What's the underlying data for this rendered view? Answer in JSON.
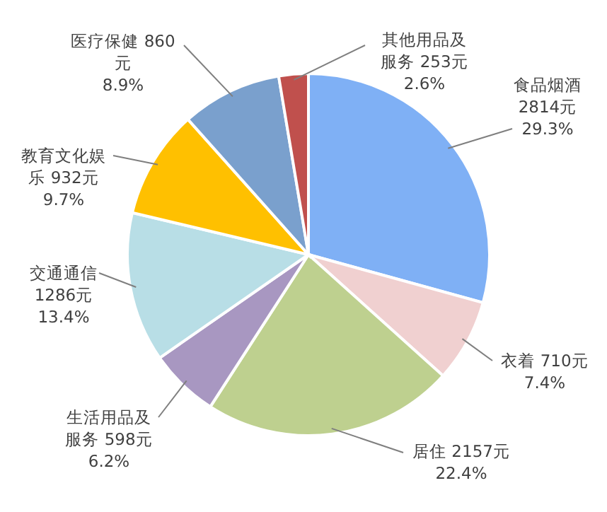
{
  "chart_data": {
    "type": "pie",
    "categories": [
      "食品烟酒",
      "衣着",
      "居住",
      "生活用品及服务",
      "交通通信",
      "教育文化娱乐",
      "医疗保健",
      "其他用品及服务"
    ],
    "values": [
      2814,
      710,
      2157,
      598,
      1286,
      932,
      860,
      253
    ],
    "colors": [
      "#7fb0f5",
      "#f0d0d0",
      "#bed08f",
      "#a897c1",
      "#b8dee6",
      "#ffc000",
      "#7aa0cd",
      "#c0504d"
    ],
    "value_labels": [
      "2814元\n29.3%",
      "710元\n7.4%",
      "2157元\n22.4%",
      "598元\n6.2%",
      "1286元\n13.4%",
      "932元\n9.7%",
      "860元\n8.9%",
      "253元\n2.6%"
    ]
  }
}
